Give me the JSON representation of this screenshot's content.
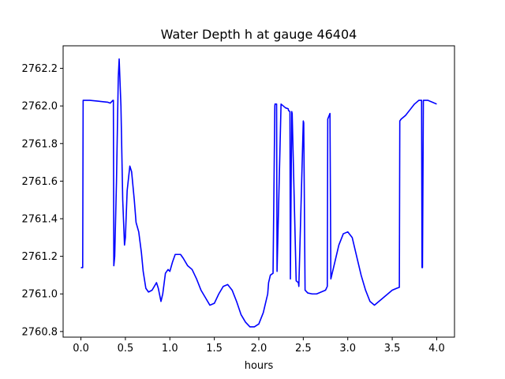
{
  "chart_data": {
    "type": "line",
    "title": "Water Depth h at gauge 46404",
    "xlabel": "hours",
    "ylabel": "",
    "xlim": [
      -0.2,
      4.2
    ],
    "ylim": [
      2760.77,
      2762.32
    ],
    "x_ticks": [
      0.0,
      0.5,
      1.0,
      1.5,
      2.0,
      2.5,
      3.0,
      3.5,
      4.0
    ],
    "x_tick_labels": [
      "0.0",
      "0.5",
      "1.0",
      "1.5",
      "2.0",
      "2.5",
      "3.0",
      "3.5",
      "4.0"
    ],
    "y_ticks": [
      2760.8,
      2761.0,
      2761.2,
      2761.4,
      2761.6,
      2761.8,
      2762.0,
      2762.2
    ],
    "y_tick_labels": [
      "2760.8",
      "2761.0",
      "2761.2",
      "2761.4",
      "2761.6",
      "2761.8",
      "2762.0",
      "2762.2"
    ],
    "grid": false,
    "series": [
      {
        "color": "#0000ff",
        "x": [
          0.0,
          0.02,
          0.025,
          0.1,
          0.2,
          0.3,
          0.33,
          0.36,
          0.365,
          0.37,
          0.38,
          0.4,
          0.42,
          0.43,
          0.45,
          0.47,
          0.49,
          0.5,
          0.52,
          0.55,
          0.57,
          0.6,
          0.62,
          0.65,
          0.68,
          0.7,
          0.73,
          0.76,
          0.8,
          0.85,
          0.87,
          0.9,
          0.92,
          0.95,
          0.98,
          1.0,
          1.03,
          1.06,
          1.09,
          1.12,
          1.15,
          1.2,
          1.25,
          1.3,
          1.35,
          1.4,
          1.45,
          1.5,
          1.55,
          1.6,
          1.65,
          1.7,
          1.75,
          1.8,
          1.85,
          1.9,
          1.95,
          2.0,
          2.05,
          2.1,
          2.11,
          2.13,
          2.16,
          2.18,
          2.182,
          2.2,
          2.205,
          2.25,
          2.3,
          2.33,
          2.335,
          2.35,
          2.355,
          2.37,
          2.375,
          2.42,
          2.445,
          2.45,
          2.5,
          2.505,
          2.52,
          2.55,
          2.6,
          2.65,
          2.7,
          2.75,
          2.77,
          2.775,
          2.8,
          2.81,
          2.82,
          2.85,
          2.9,
          2.95,
          3.0,
          3.05,
          3.1,
          3.15,
          3.2,
          3.25,
          3.3,
          3.35,
          3.4,
          3.45,
          3.5,
          3.55,
          3.58,
          3.585,
          3.6,
          3.65,
          3.7,
          3.75,
          3.8,
          3.83,
          3.835,
          3.84,
          3.85,
          3.855,
          3.9,
          3.95,
          4.0
        ],
        "y": [
          2761.14,
          2761.14,
          2762.03,
          2762.03,
          2762.025,
          2762.02,
          2762.015,
          2762.03,
          2762.03,
          2761.15,
          2761.2,
          2761.6,
          2762.15,
          2762.25,
          2762.0,
          2761.5,
          2761.26,
          2761.3,
          2761.55,
          2761.68,
          2761.65,
          2761.5,
          2761.38,
          2761.33,
          2761.22,
          2761.12,
          2761.03,
          2761.01,
          2761.02,
          2761.06,
          2761.03,
          2760.96,
          2761.0,
          2761.11,
          2761.13,
          2761.12,
          2761.17,
          2761.21,
          2761.21,
          2761.21,
          2761.19,
          2761.15,
          2761.13,
          2761.08,
          2761.02,
          2760.98,
          2760.94,
          2760.95,
          2761.0,
          2761.04,
          2761.05,
          2761.02,
          2760.96,
          2760.89,
          2760.85,
          2760.825,
          2760.825,
          2760.84,
          2760.9,
          2761.0,
          2761.06,
          2761.1,
          2761.11,
          2762.0,
          2762.01,
          2762.01,
          2761.12,
          2762.01,
          2761.99,
          2761.985,
          2761.975,
          2761.97,
          2761.08,
          2761.97,
          2761.96,
          2761.07,
          2761.06,
          2761.04,
          2761.92,
          2761.91,
          2761.02,
          2761.005,
          2761.0,
          2761.0,
          2761.01,
          2761.02,
          2761.04,
          2761.93,
          2761.96,
          2761.08,
          2761.1,
          2761.16,
          2761.26,
          2761.32,
          2761.33,
          2761.3,
          2761.2,
          2761.1,
          2761.02,
          2760.96,
          2760.94,
          2760.96,
          2760.98,
          2761.0,
          2761.02,
          2761.03,
          2761.035,
          2761.92,
          2761.93,
          2761.95,
          2761.98,
          2762.01,
          2762.03,
          2762.03,
          2761.14,
          2761.14,
          2762.03,
          2762.03,
          2762.03,
          2762.02,
          2762.01
        ]
      }
    ]
  }
}
